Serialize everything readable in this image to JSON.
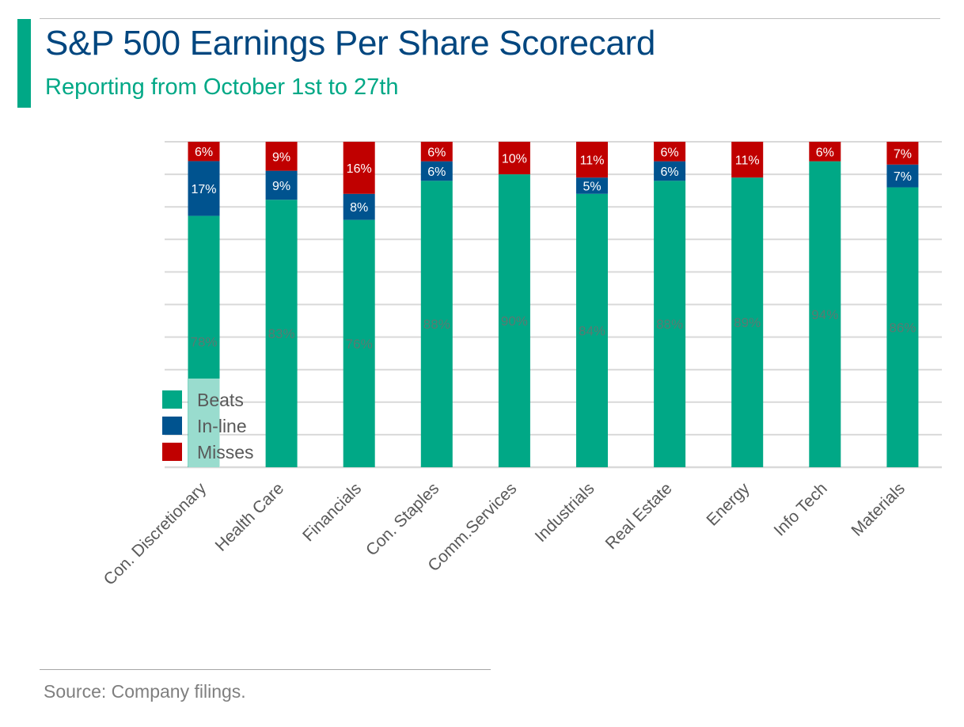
{
  "header": {
    "title": "S&P 500 Earnings Per Share Scorecard",
    "subtitle": "Reporting from October 1st to 27th"
  },
  "footer": {
    "source": "Source: Company filings."
  },
  "colors": {
    "accent": "#00a886",
    "title": "#00467f",
    "beats": "#00a886",
    "inline": "#00538f",
    "misses": "#c00000"
  },
  "chart_data": {
    "type": "bar",
    "stacked": true,
    "categories": [
      "Con. Discretionary",
      "Health Care",
      "Financials",
      "Con. Staples",
      "Comm.Services",
      "Industrials",
      "Real Estate",
      "Energy",
      "Info Tech",
      "Materials"
    ],
    "series": [
      {
        "name": "Beats",
        "values": [
          78,
          83,
          76,
          88,
          90,
          84,
          88,
          89,
          94,
          86
        ],
        "labels": [
          "78%",
          "83%",
          "76%",
          "88%",
          "90%",
          "84%",
          "88%",
          "89%",
          "94%",
          "86%"
        ],
        "color": "#00a886"
      },
      {
        "name": "In-line",
        "values": [
          17,
          9,
          8,
          6,
          0,
          5,
          6,
          0,
          0,
          7
        ],
        "labels": [
          "17%",
          "9%",
          "8%",
          "6%",
          "",
          "5%",
          "6%",
          "",
          "",
          "7%"
        ],
        "color": "#00538f"
      },
      {
        "name": "Misses",
        "values": [
          6,
          9,
          16,
          6,
          10,
          11,
          6,
          11,
          6,
          7
        ],
        "labels": [
          "6%",
          "9%",
          "16%",
          "6%",
          "10%",
          "11%",
          "6%",
          "11%",
          "6%",
          "7%"
        ],
        "color": "#c00000"
      }
    ],
    "ylim": [
      0,
      100
    ],
    "grid": true,
    "legend": "bottom-left"
  }
}
